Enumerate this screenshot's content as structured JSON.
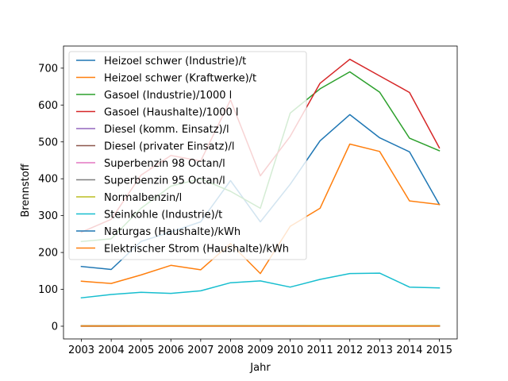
{
  "chart_data": {
    "type": "line",
    "title": "",
    "xlabel": "Jahr",
    "ylabel": "Brennstoff",
    "x": [
      2003,
      2004,
      2005,
      2006,
      2007,
      2008,
      2009,
      2010,
      2011,
      2012,
      2013,
      2014,
      2015
    ],
    "xlim": [
      2002.4,
      2015.6
    ],
    "ylim": [
      -34.5,
      760
    ],
    "yticks": [
      0,
      100,
      200,
      300,
      400,
      500,
      600,
      700
    ],
    "grid": false,
    "legend_position": "top-left",
    "series": [
      {
        "name": "Heizoel schwer (Industrie)/t",
        "color": "#1f77b4",
        "values": [
          162,
          154,
          230,
          256,
          283,
          395,
          283,
          385,
          503,
          574,
          511,
          473,
          330
        ]
      },
      {
        "name": "Heizoel schwer (Kraftwerke)/t",
        "color": "#ff7f0e",
        "values": [
          122,
          116,
          139,
          165,
          153,
          224,
          143,
          271,
          320,
          494,
          474,
          340,
          330
        ]
      },
      {
        "name": "Gasoel (Industrie)/1000 l",
        "color": "#2ca02c",
        "values": [
          230,
          237,
          320,
          380,
          400,
          366,
          320,
          578,
          644,
          690,
          635,
          510,
          476
        ]
      },
      {
        "name": "Gasoel (Haushalte)/1000 l",
        "color": "#d62728",
        "values": [
          255,
          290,
          410,
          463,
          448,
          614,
          408,
          515,
          659,
          724,
          679,
          634,
          484
        ]
      },
      {
        "name": "Diesel (komm. Einsatz)/l",
        "color": "#9467bd",
        "values": [
          0.85,
          0.88,
          0.94,
          1.02,
          1.05,
          1.18,
          0.98,
          1.1,
          1.24,
          1.3,
          1.27,
          1.22,
          1.08
        ]
      },
      {
        "name": "Diesel (privater Einsatz)/l",
        "color": "#8c564b",
        "values": [
          0.82,
          0.85,
          0.92,
          1.0,
          1.03,
          1.15,
          0.96,
          1.08,
          1.22,
          1.28,
          1.25,
          1.2,
          1.06
        ]
      },
      {
        "name": "Superbenzin 98 Octan/l",
        "color": "#e377c2",
        "values": [
          1.1,
          1.14,
          1.22,
          1.3,
          1.34,
          1.4,
          1.28,
          1.4,
          1.52,
          1.6,
          1.56,
          1.5,
          1.38
        ]
      },
      {
        "name": "Superbenzin 95 Octan/l",
        "color": "#7f7f7f",
        "values": [
          1.05,
          1.09,
          1.17,
          1.25,
          1.29,
          1.35,
          1.23,
          1.35,
          1.47,
          1.55,
          1.51,
          1.45,
          1.33
        ]
      },
      {
        "name": "Normalbenzin/l",
        "color": "#bcbd22",
        "values": [
          1.02,
          1.06,
          1.14,
          1.22,
          1.26,
          1.32,
          1.2,
          1.32,
          1.44,
          1.52,
          1.48,
          1.42,
          1.3
        ]
      },
      {
        "name": "Steinkohle (Industrie)/t",
        "color": "#17becf",
        "values": [
          77,
          86,
          92,
          89,
          96,
          118,
          123,
          106,
          127,
          143,
          144,
          106,
          104
        ]
      },
      {
        "name": "Naturgas (Haushalte)/kWh",
        "color": "#1f77b4",
        "values": [
          0.05,
          0.05,
          0.06,
          0.07,
          0.07,
          0.08,
          0.08,
          0.07,
          0.07,
          0.08,
          0.08,
          0.08,
          0.08
        ]
      },
      {
        "name": "Elektrischer Strom (Haushalte)/kWh",
        "color": "#ff7f0e",
        "values": [
          0.12,
          0.12,
          0.13,
          0.13,
          0.13,
          0.14,
          0.14,
          0.14,
          0.15,
          0.15,
          0.15,
          0.15,
          0.15
        ]
      }
    ]
  }
}
